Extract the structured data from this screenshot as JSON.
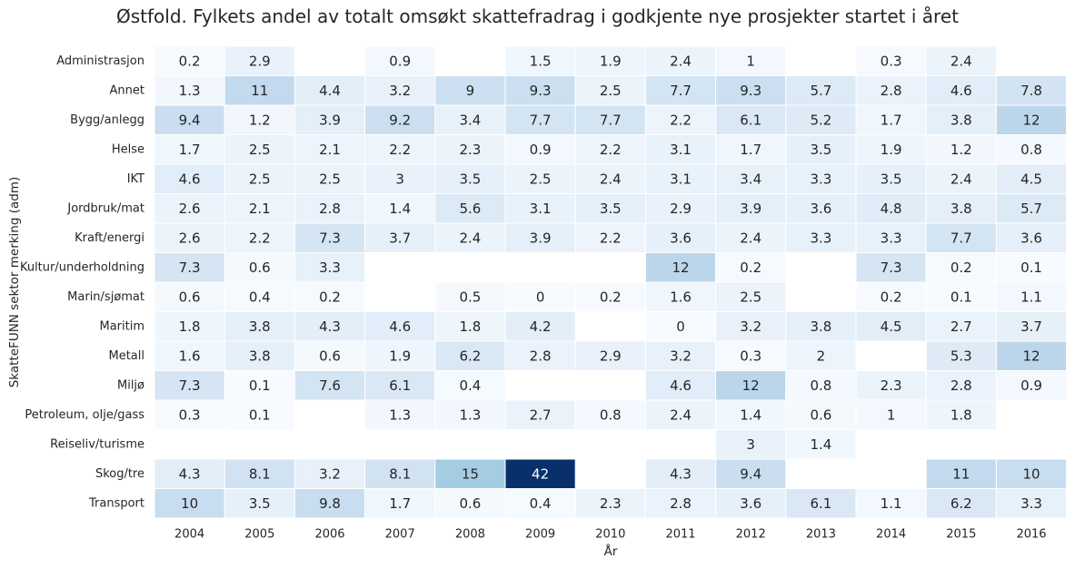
{
  "chart_data": {
    "type": "heatmap",
    "title": "Østfold. Fylkets andel av totalt omsøkt skattefradrag i godkjente nye prosjekter startet i året",
    "xlabel": "År",
    "ylabel": "SkatteFUNN sektor merking (adm)",
    "x": [
      "2004",
      "2005",
      "2006",
      "2007",
      "2008",
      "2009",
      "2010",
      "2011",
      "2012",
      "2013",
      "2014",
      "2015",
      "2016"
    ],
    "y": [
      "Administrasjon",
      "Annet",
      "Bygg/anlegg",
      "Helse",
      "IKT",
      "Jordbruk/mat",
      "Kraft/energi",
      "Kultur/underholdning",
      "Marin/sjømat",
      "Maritim",
      "Metall",
      "Miljø",
      "Petroleum, olje/gass",
      "Reiseliv/turisme",
      "Skog/tre",
      "Transport"
    ],
    "values": [
      [
        0.2,
        2.9,
        null,
        0.9,
        null,
        1.5,
        1.9,
        2.4,
        1,
        null,
        0.3,
        2.4,
        null
      ],
      [
        1.3,
        11,
        4.4,
        3.2,
        9,
        9.3,
        2.5,
        7.7,
        9.3,
        5.7,
        2.8,
        4.6,
        7.8
      ],
      [
        9.4,
        1.2,
        3.9,
        9.2,
        3.4,
        7.7,
        7.7,
        2.2,
        6.1,
        5.2,
        1.7,
        3.8,
        12
      ],
      [
        1.7,
        2.5,
        2.1,
        2.2,
        2.3,
        0.9,
        2.2,
        3.1,
        1.7,
        3.5,
        1.9,
        1.2,
        0.8
      ],
      [
        4.6,
        2.5,
        2.5,
        3,
        3.5,
        2.5,
        2.4,
        3.1,
        3.4,
        3.3,
        3.5,
        2.4,
        4.5
      ],
      [
        2.6,
        2.1,
        2.8,
        1.4,
        5.6,
        3.1,
        3.5,
        2.9,
        3.9,
        3.6,
        4.8,
        3.8,
        5.7
      ],
      [
        2.6,
        2.2,
        7.3,
        3.7,
        2.4,
        3.9,
        2.2,
        3.6,
        2.4,
        3.3,
        3.3,
        7.7,
        3.6
      ],
      [
        7.3,
        0.6,
        3.3,
        null,
        null,
        null,
        null,
        12,
        0.2,
        null,
        7.3,
        0.2,
        0.1
      ],
      [
        0.6,
        0.4,
        0.2,
        null,
        0.5,
        0,
        0.2,
        1.6,
        2.5,
        null,
        0.2,
        0.1,
        1.1
      ],
      [
        1.8,
        3.8,
        4.3,
        4.6,
        1.8,
        4.2,
        null,
        0,
        3.2,
        3.8,
        4.5,
        2.7,
        3.7
      ],
      [
        1.6,
        3.8,
        0.6,
        1.9,
        6.2,
        2.8,
        2.9,
        3.2,
        0.3,
        2,
        null,
        5.3,
        12
      ],
      [
        7.3,
        0.1,
        7.6,
        6.1,
        0.4,
        null,
        null,
        4.6,
        12,
        0.8,
        2.3,
        2.8,
        0.9
      ],
      [
        0.3,
        0.1,
        null,
        1.3,
        1.3,
        2.7,
        0.8,
        2.4,
        1.4,
        0.6,
        1,
        1.8,
        null
      ],
      [
        null,
        null,
        null,
        null,
        null,
        null,
        null,
        null,
        3,
        1.4,
        null,
        null,
        null
      ],
      [
        4.3,
        8.1,
        3.2,
        8.1,
        15,
        42,
        null,
        4.3,
        9.4,
        null,
        null,
        11,
        10
      ],
      [
        10,
        3.5,
        9.8,
        1.7,
        0.6,
        0.4,
        2.3,
        2.8,
        3.6,
        6.1,
        1.1,
        6.2,
        3.3
      ]
    ],
    "colormap": "Blues",
    "vmin": 0,
    "vmax": 42,
    "grid": false,
    "legend": "none"
  }
}
